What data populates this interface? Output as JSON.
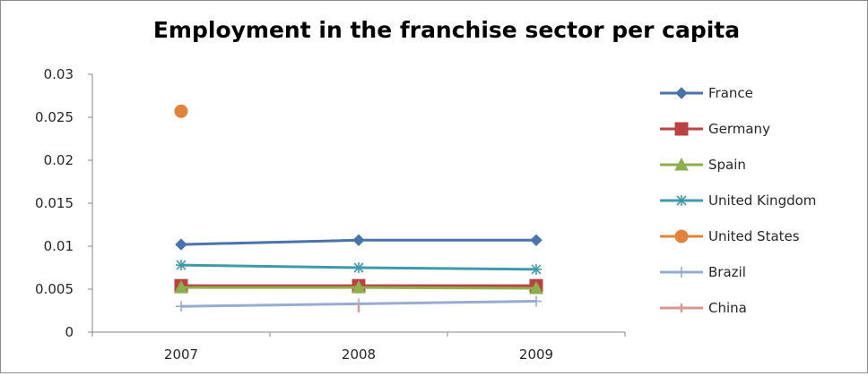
{
  "chart_data": {
    "type": "line",
    "title": "Employment in the franchise sector  per capita",
    "xlabel": "",
    "ylabel": "",
    "categories": [
      "2007",
      "2008",
      "2009"
    ],
    "ylim": [
      0,
      0.03
    ],
    "yticks": [
      "0",
      "0.005",
      "0.01",
      "0.015",
      "0.02",
      "0.025",
      "0.03"
    ],
    "grid": false,
    "legend_position": "right",
    "series": [
      {
        "name": "France",
        "values": [
          0.0102,
          0.0107,
          0.0107
        ],
        "color": "#4a72ab",
        "marker": "diamond"
      },
      {
        "name": "Germany",
        "values": [
          0.0054,
          0.0054,
          0.0054
        ],
        "color": "#b84340",
        "marker": "square"
      },
      {
        "name": "Spain",
        "values": [
          0.0052,
          0.0052,
          0.0051
        ],
        "color": "#8faf4d",
        "marker": "triangle"
      },
      {
        "name": "United Kingdom",
        "values": [
          0.0078,
          0.0075,
          0.0073
        ],
        "color": "#3f9aab",
        "marker": "asterisk"
      },
      {
        "name": "United States",
        "values": [
          0.0257,
          null,
          null
        ],
        "color": "#e0843b",
        "marker": "circle"
      },
      {
        "name": "Brazil",
        "values": [
          0.003,
          0.0033,
          0.0036
        ],
        "color": "#97acd0",
        "marker": "plus"
      },
      {
        "name": "China",
        "values": [
          null,
          0.0028,
          null
        ],
        "color": "#d89894",
        "marker": "dash"
      }
    ]
  }
}
